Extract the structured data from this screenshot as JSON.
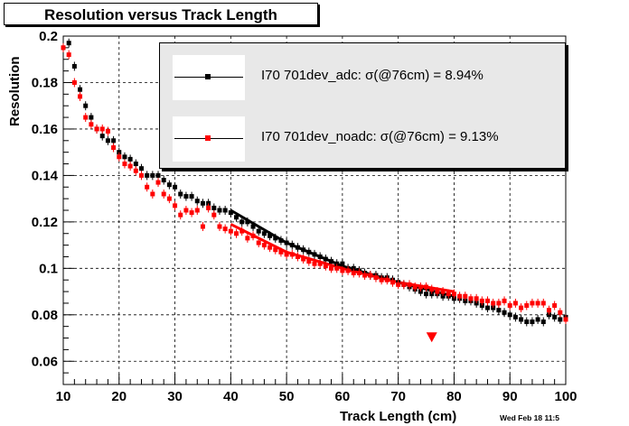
{
  "chart_data": {
    "type": "scatter",
    "title": "Resolution versus Track Length",
    "xlabel": "Track Length (cm)",
    "ylabel": "Resolution",
    "xlim": [
      10,
      100
    ],
    "ylim": [
      0.05,
      0.2
    ],
    "xticks": [
      "10",
      "20",
      "30",
      "40",
      "50",
      "60",
      "70",
      "80",
      "90",
      "100"
    ],
    "yticks": [
      "0.06",
      "0.08",
      "0.1",
      "0.12",
      "0.14",
      "0.16",
      "0.18",
      "0.2"
    ],
    "grid": true,
    "legend_position": "top-right",
    "datestamp": "Wed Feb 18 11:5",
    "series": [
      {
        "name": "I70  701dev_adc:",
        "legend_text": "I70  701dev_adc:  σ(@76cm) =  8.94%",
        "color": "#000000",
        "x": [
          10,
          11,
          12,
          13,
          14,
          15,
          16,
          17,
          18,
          19,
          20,
          21,
          22,
          23,
          24,
          25,
          26,
          27,
          28,
          29,
          30,
          31,
          32,
          33,
          34,
          35,
          36,
          37,
          38,
          39,
          40,
          41,
          42,
          43,
          44,
          45,
          46,
          47,
          48,
          49,
          50,
          51,
          52,
          53,
          54,
          55,
          56,
          57,
          58,
          59,
          60,
          61,
          62,
          63,
          64,
          65,
          66,
          67,
          68,
          69,
          70,
          71,
          72,
          73,
          74,
          75,
          76,
          77,
          78,
          79,
          80,
          81,
          82,
          83,
          84,
          85,
          86,
          87,
          88,
          89,
          90,
          91,
          92,
          93,
          94,
          95,
          96,
          97,
          98,
          99,
          100
        ],
        "y": [
          0.195,
          0.197,
          0.187,
          0.177,
          0.17,
          0.165,
          0.16,
          0.157,
          0.155,
          0.155,
          0.15,
          0.148,
          0.147,
          0.145,
          0.143,
          0.14,
          0.14,
          0.14,
          0.138,
          0.136,
          0.135,
          0.132,
          0.131,
          0.131,
          0.129,
          0.128,
          0.128,
          0.126,
          0.125,
          0.125,
          0.124,
          0.122,
          0.12,
          0.12,
          0.118,
          0.116,
          0.115,
          0.114,
          0.113,
          0.112,
          0.111,
          0.11,
          0.109,
          0.108,
          0.107,
          0.106,
          0.105,
          0.104,
          0.103,
          0.102,
          0.102,
          0.1,
          0.1,
          0.099,
          0.098,
          0.097,
          0.097,
          0.096,
          0.096,
          0.095,
          0.094,
          0.093,
          0.092,
          0.091,
          0.09,
          0.089,
          0.089,
          0.089,
          0.088,
          0.088,
          0.087,
          0.087,
          0.086,
          0.086,
          0.085,
          0.084,
          0.083,
          0.083,
          0.082,
          0.081,
          0.08,
          0.079,
          0.078,
          0.077,
          0.077,
          0.078,
          0.077,
          0.08,
          0.079,
          0.078,
          0.079
        ]
      },
      {
        "name": "I70  701dev_noadc:",
        "legend_text": "I70  701dev_noadc:  σ(@76cm) =  9.13%",
        "color": "#ff0000",
        "x": [
          10,
          11,
          12,
          13,
          14,
          15,
          16,
          17,
          18,
          19,
          20,
          21,
          22,
          23,
          24,
          25,
          26,
          27,
          28,
          29,
          30,
          31,
          32,
          33,
          34,
          35,
          36,
          37,
          38,
          39,
          40,
          41,
          42,
          43,
          44,
          45,
          46,
          47,
          48,
          49,
          50,
          51,
          52,
          53,
          54,
          55,
          56,
          57,
          58,
          59,
          60,
          61,
          62,
          63,
          64,
          65,
          66,
          67,
          68,
          69,
          70,
          71,
          72,
          73,
          74,
          75,
          76,
          77,
          78,
          79,
          80,
          81,
          82,
          83,
          84,
          85,
          86,
          87,
          88,
          89,
          90,
          91,
          92,
          93,
          94,
          95,
          96,
          97,
          98,
          99,
          100
        ],
        "y": [
          0.195,
          0.192,
          0.18,
          0.174,
          0.165,
          0.162,
          0.16,
          0.16,
          0.159,
          0.152,
          0.148,
          0.145,
          0.144,
          0.142,
          0.14,
          0.135,
          0.132,
          0.137,
          0.132,
          0.13,
          0.127,
          0.123,
          0.125,
          0.124,
          0.125,
          0.118,
          0.126,
          0.123,
          0.118,
          0.117,
          0.116,
          0.115,
          0.116,
          0.113,
          0.114,
          0.111,
          0.11,
          0.109,
          0.108,
          0.107,
          0.106,
          0.106,
          0.105,
          0.104,
          0.103,
          0.102,
          0.102,
          0.101,
          0.1,
          0.1,
          0.099,
          0.099,
          0.098,
          0.098,
          0.097,
          0.097,
          0.096,
          0.095,
          0.095,
          0.094,
          0.093,
          0.093,
          0.093,
          0.092,
          0.092,
          0.092,
          0.091,
          0.09,
          0.09,
          0.089,
          0.089,
          0.088,
          0.088,
          0.087,
          0.087,
          0.086,
          0.086,
          0.085,
          0.085,
          0.086,
          0.084,
          0.085,
          0.083,
          0.084,
          0.085,
          0.085,
          0.085,
          0.082,
          0.084,
          0.081,
          0.078
        ]
      }
    ],
    "fits": [
      {
        "color": "#000000",
        "x": [
          40,
          50,
          60,
          70,
          80
        ],
        "y": [
          0.125,
          0.111,
          0.101,
          0.094,
          0.088
        ]
      },
      {
        "color": "#ff0000",
        "x": [
          40,
          50,
          60,
          70,
          80
        ],
        "y": [
          0.119,
          0.107,
          0.1,
          0.094,
          0.09
        ]
      }
    ],
    "markers": [
      {
        "color": "#ff0000",
        "shape": "triangle-down",
        "x": [
          76
        ],
        "y": [
          0.0705
        ]
      }
    ]
  }
}
